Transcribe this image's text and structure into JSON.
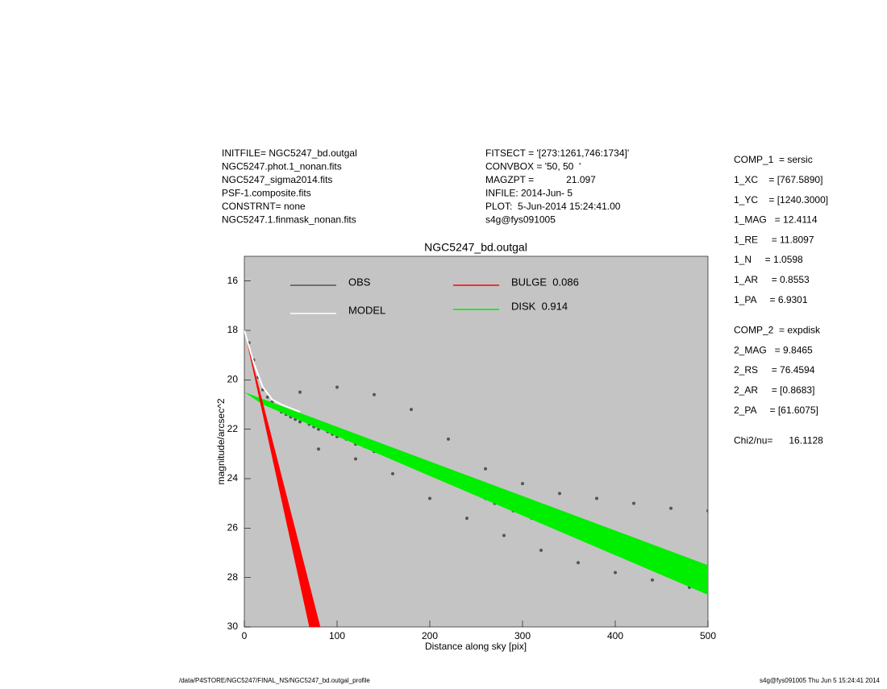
{
  "info": {
    "left": [
      "INITFILE= NGC5247_bd.outgal",
      "NGC5247.phot.1_nonan.fits",
      "NGC5247_sigma2014.fits",
      "PSF-1.composite.fits",
      "CONSTRNT= none",
      "NGC5247.1.finmask_nonan.fits"
    ],
    "middle": [
      "FITSECT = '[273:1261,746:1734]'",
      "CONVBOX = '50, 50  '",
      "MAGZPT =            21.097",
      "INFILE: 2014-Jun- 5",
      "PLOT:  5-Jun-2014 15:24:41.00",
      "s4g@fys091005"
    ],
    "right": [
      "COMP_1  = sersic",
      "1_XC    = [767.5890]",
      "1_YC    = [1240.3000]",
      "1_MAG   = 12.4114",
      "1_RE     = 11.8097",
      "1_N     = 1.0598",
      "1_AR     = 0.8553",
      "1_PA     = 6.9301",
      "COMP_2  = expdisk",
      "2_MAG   = 9.8465",
      "2_RS     = 76.4594",
      "2_AR     = [0.8683]",
      "2_PA     = [61.6075]",
      "Chi2/nu=      16.1128"
    ],
    "footer_left": "/data/P4STORE/NGC5247/FINAL_NS/NGC5247_bd.outgal_profile",
    "footer_right": "s4g@fys091005  Thu Jun  5 15:24:41 2014"
  },
  "chart_data": {
    "type": "scatter",
    "title": "NGC5247_bd.outgal",
    "x_label": "Distance along sky [pix]",
    "y_label": "magnitude/arcsec^2",
    "xlim": [
      0,
      500
    ],
    "ylim": [
      30,
      15
    ],
    "xticks": [
      0,
      100,
      200,
      300,
      400,
      500
    ],
    "yticks": [
      16,
      18,
      20,
      22,
      24,
      26,
      28,
      30
    ],
    "background": "#c4c4c4",
    "series": [
      {
        "name": "OBS",
        "kind": "points",
        "color": "#555555",
        "x": [
          5,
          10,
          15,
          20,
          25,
          30,
          35,
          40,
          45,
          50,
          55,
          60,
          70,
          75,
          80,
          90,
          95,
          100,
          110,
          120,
          130,
          140,
          150,
          160,
          170,
          180,
          190,
          200,
          210,
          220,
          230,
          240,
          250,
          260,
          270,
          280,
          290,
          300,
          310,
          320,
          330,
          340,
          350,
          360,
          370,
          380,
          390,
          400,
          410,
          420,
          430,
          440,
          450,
          460,
          470,
          480,
          490,
          500,
          60,
          100,
          140,
          180,
          220,
          260,
          300,
          340,
          380,
          420,
          460,
          500,
          80,
          120,
          160,
          200,
          240,
          280,
          320,
          360,
          400,
          440,
          480
        ],
        "values": [
          18.5,
          19.2,
          19.9,
          20.4,
          20.7,
          20.9,
          21.1,
          21.3,
          21.4,
          21.5,
          21.6,
          21.7,
          21.8,
          21.9,
          22.0,
          22.1,
          22.2,
          22.3,
          22.4,
          22.6,
          22.7,
          22.9,
          23.0,
          23.1,
          23.3,
          23.4,
          23.6,
          23.7,
          23.9,
          24.0,
          24.2,
          24.4,
          24.6,
          24.8,
          25.0,
          25.1,
          25.3,
          25.4,
          25.6,
          25.7,
          25.9,
          26.0,
          26.1,
          26.2,
          26.3,
          26.4,
          26.5,
          26.6,
          26.7,
          26.8,
          26.9,
          27.0,
          27.1,
          27.2,
          27.3,
          27.4,
          27.5,
          27.6,
          20.5,
          20.3,
          20.6,
          21.2,
          22.4,
          23.6,
          24.2,
          24.6,
          24.8,
          25.0,
          25.2,
          25.3,
          22.8,
          23.2,
          23.8,
          24.8,
          25.6,
          26.3,
          26.9,
          27.4,
          27.8,
          28.1,
          28.4
        ]
      },
      {
        "name": "MODEL",
        "kind": "line",
        "color": "#ffffff",
        "x": [
          0,
          10,
          20,
          30,
          40,
          60
        ],
        "values": [
          18,
          19.3,
          20.3,
          20.8,
          21.0,
          21.3
        ]
      },
      {
        "name": "BULGE  0.086",
        "kind": "polygon",
        "color": "#ff0000",
        "x": [
          0,
          70,
          82
        ],
        "values": [
          18,
          30,
          30
        ]
      },
      {
        "name": "DISK  0.914",
        "kind": "polygon",
        "color": "#00ee00",
        "x": [
          0,
          500,
          500,
          20
        ],
        "values": [
          20.5,
          27.5,
          28.7,
          21.0
        ]
      }
    ]
  }
}
